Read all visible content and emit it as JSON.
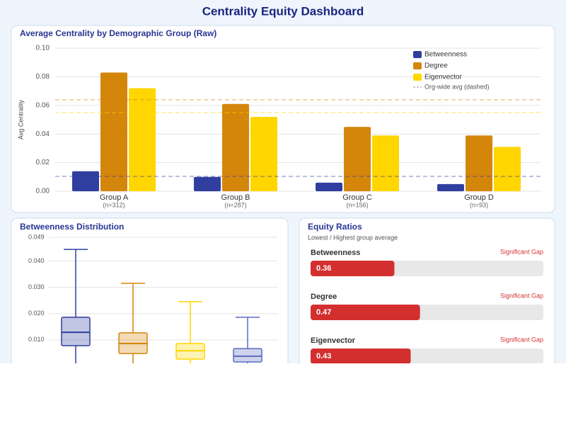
{
  "title": "Centrality Equity Dashboard",
  "chart_data": [
    {
      "type": "bar",
      "title": "Average Centrality by Demographic Group (Raw)",
      "y_label": "Avg Centrality",
      "categories": [
        "Group A",
        "Group B",
        "Group C",
        "Group D"
      ],
      "category_notes": [
        "(n=312)",
        "(n=287)",
        "(n=156)",
        "(n=93)"
      ],
      "series": [
        {
          "name": "Betweenness",
          "color": "#303f9f",
          "values": [
            0.014,
            0.01,
            0.006,
            0.005
          ],
          "org_avg": 0.0104
        },
        {
          "name": "Degree",
          "color": "#d4860b",
          "values": [
            0.083,
            0.061,
            0.045,
            0.039
          ],
          "org_avg": 0.064
        },
        {
          "name": "Eigenvector",
          "color": "#ffd600",
          "values": [
            0.072,
            0.052,
            0.039,
            0.031
          ],
          "org_avg": 0.055
        }
      ],
      "reference_label": "Org-wide avg (dashed)",
      "ylim": [
        0,
        0.1
      ],
      "yticks": [
        {
          "value": 0,
          "label": "0.00"
        },
        0.02,
        0.04,
        0.06,
        0.08,
        {
          "value": 0.1,
          "label": "0.10"
        }
      ],
      "grid": true,
      "legend": "top-right"
    },
    {
      "type": "box",
      "title": "Betweenness Distribution",
      "ylim": [
        0,
        0.049
      ],
      "yticks": [
        {
          "value": 0.01,
          "label": "0.010"
        },
        {
          "value": 0.02,
          "label": "0.020"
        },
        {
          "value": 0.03,
          "label": "0.030"
        },
        {
          "value": 0.04,
          "label": "0.040"
        },
        0.049
      ],
      "grid": true,
      "boxes": [
        {
          "color": "#303f9f",
          "min": 0,
          "q1": 0.0078,
          "median": 0.0129,
          "q3": 0.0186,
          "max": 0.0444
        },
        {
          "color": "#d4860b",
          "min": 0,
          "q1": 0.0048,
          "median": 0.0086,
          "q3": 0.0127,
          "max": 0.0315
        },
        {
          "color": "#ffd600",
          "min": 0,
          "q1": 0.0027,
          "median": 0.0059,
          "q3": 0.0086,
          "max": 0.0245
        },
        {
          "color": "#5c6bc0",
          "min": 0,
          "q1": 0.0016,
          "median": 0.0038,
          "q3": 0.0067,
          "max": 0.0186
        }
      ]
    },
    {
      "type": "ratio",
      "title": "Equity Ratios",
      "subtitle": "Lowest / Highest group average",
      "xlim": [
        0,
        1
      ],
      "color": "#d32f2f",
      "items": [
        {
          "name": "Betweenness",
          "value": 0.36,
          "status": "Significant Gap"
        },
        {
          "name": "Degree",
          "value": 0.47,
          "status": "Significant Gap"
        },
        {
          "name": "Eigenvector",
          "value": 0.43,
          "status": "Significant Gap"
        }
      ]
    }
  ]
}
